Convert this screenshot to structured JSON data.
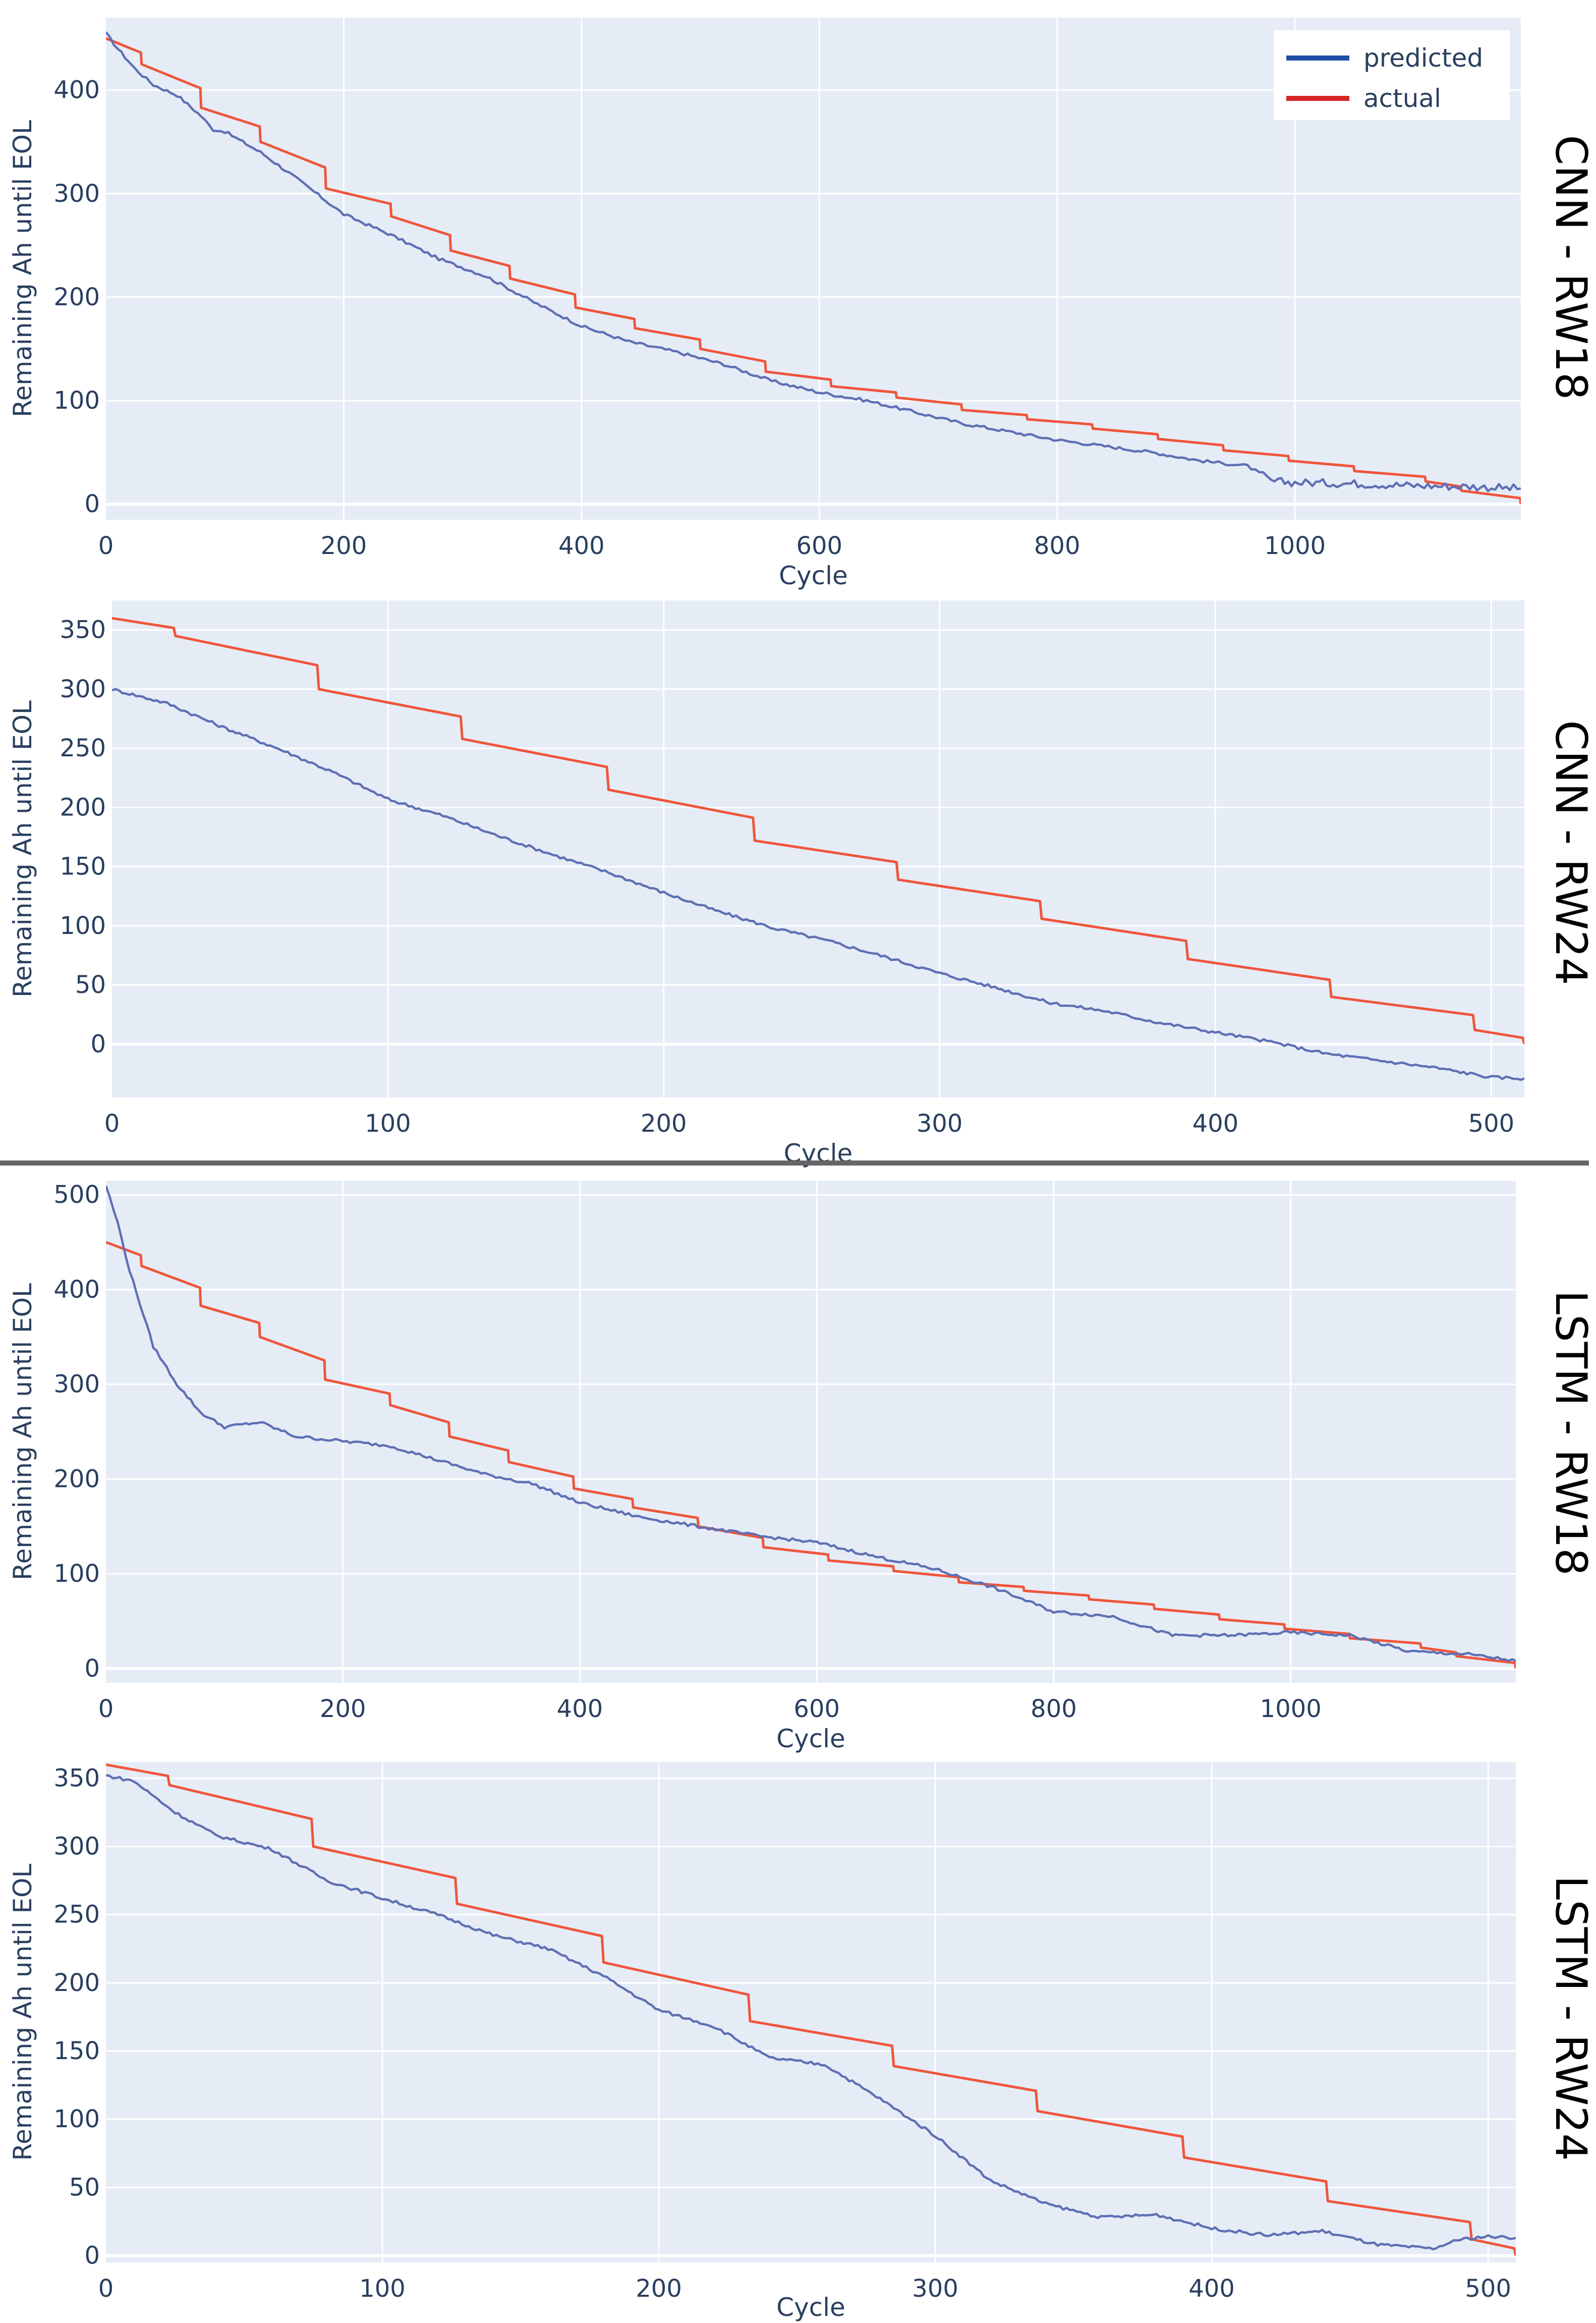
{
  "legend": {
    "predicted": "predicted",
    "actual": "actual"
  },
  "colors": {
    "predicted": "#5f6fb4",
    "actual": "#ef553b",
    "predicted_legend": "#1f4ea8",
    "actual_legend": "#d62728",
    "plot_bg": "#e5ecf6",
    "separator": "#666666"
  },
  "chart_data": [
    {
      "type": "line",
      "panel_label": "CNN - RW18",
      "xlabel": "Cycle",
      "ylabel": "Remaining Ah until EOL",
      "xlim": [
        0,
        1190
      ],
      "ylim": [
        -15,
        470
      ],
      "xticks": [
        0,
        200,
        400,
        600,
        800,
        1000
      ],
      "yticks": [
        0,
        100,
        200,
        300,
        400
      ],
      "legend": true,
      "noise_after": 970,
      "series": [
        {
          "name": "actual",
          "x": [
            0,
            30,
            80,
            130,
            185,
            240,
            290,
            340,
            395,
            445,
            500,
            555,
            610,
            665,
            720,
            775,
            830,
            885,
            940,
            995,
            1050,
            1110,
            1140,
            1190
          ],
          "values": [
            450,
            425,
            383,
            350,
            305,
            278,
            245,
            218,
            190,
            170,
            150,
            128,
            114,
            103,
            91,
            82,
            73,
            63,
            52,
            42,
            32,
            22,
            13,
            0
          ]
        },
        {
          "name": "predicted",
          "x": [
            0,
            10,
            25,
            40,
            60,
            80,
            90,
            100,
            130,
            160,
            200,
            240,
            280,
            320,
            360,
            400,
            440,
            480,
            520,
            560,
            600,
            640,
            680,
            720,
            760,
            800,
            840,
            880,
            920,
            960,
            970,
            980,
            1000,
            1050,
            1100,
            1150,
            1190
          ],
          "values": [
            455,
            440,
            420,
            405,
            395,
            375,
            362,
            360,
            340,
            315,
            280,
            260,
            237,
            220,
            195,
            172,
            157,
            147,
            135,
            119,
            108,
            100,
            89,
            78,
            70,
            62,
            56,
            50,
            42,
            37,
            30,
            22,
            21,
            20,
            18,
            17,
            15
          ]
        }
      ]
    },
    {
      "type": "line",
      "panel_label": "CNN - RW24",
      "xlabel": "Cycle",
      "ylabel": "Remaining Ah until EOL",
      "xlim": [
        0,
        512
      ],
      "ylim": [
        -45,
        375
      ],
      "xticks": [
        0,
        100,
        200,
        300,
        400,
        500
      ],
      "yticks": [
        0,
        50,
        100,
        150,
        200,
        250,
        300,
        350
      ],
      "legend": false,
      "series": [
        {
          "name": "actual",
          "x": [
            0,
            23,
            75,
            127,
            180,
            233,
            285,
            337,
            390,
            442,
            494,
            512
          ],
          "values": [
            360,
            345,
            300,
            258,
            215,
            172,
            139,
            106,
            72,
            40,
            12,
            0
          ]
        },
        {
          "name": "predicted",
          "x": [
            0,
            20,
            40,
            60,
            80,
            100,
            120,
            140,
            160,
            180,
            200,
            220,
            240,
            260,
            280,
            300,
            320,
            340,
            360,
            380,
            400,
            420,
            440,
            460,
            480,
            500,
            512
          ],
          "values": [
            300,
            288,
            268,
            250,
            230,
            207,
            193,
            176,
            160,
            145,
            128,
            112,
            98,
            87,
            74,
            60,
            48,
            35,
            28,
            18,
            10,
            2,
            -8,
            -14,
            -20,
            -28,
            -29
          ]
        }
      ]
    },
    {
      "type": "line",
      "panel_label": "LSTM - RW18",
      "xlabel": "Cycle",
      "ylabel": "Remaining Ah until EOL",
      "xlim": [
        0,
        1190
      ],
      "ylim": [
        -15,
        515
      ],
      "xticks": [
        0,
        200,
        400,
        600,
        800,
        1000
      ],
      "yticks": [
        0,
        100,
        200,
        300,
        400,
        500
      ],
      "legend": false,
      "series": [
        {
          "name": "actual",
          "x": [
            0,
            30,
            80,
            130,
            185,
            240,
            290,
            340,
            395,
            445,
            500,
            555,
            610,
            665,
            720,
            775,
            830,
            885,
            940,
            995,
            1050,
            1110,
            1140,
            1190
          ],
          "values": [
            450,
            425,
            383,
            350,
            305,
            278,
            245,
            218,
            190,
            170,
            150,
            128,
            114,
            103,
            91,
            82,
            73,
            63,
            52,
            42,
            32,
            22,
            13,
            0
          ]
        },
        {
          "name": "predicted",
          "x": [
            0,
            10,
            20,
            40,
            60,
            80,
            100,
            130,
            160,
            200,
            240,
            280,
            320,
            360,
            400,
            450,
            500,
            550,
            600,
            650,
            700,
            750,
            800,
            850,
            900,
            950,
            1000,
            1050,
            1100,
            1150,
            1190
          ],
          "values": [
            510,
            470,
            420,
            340,
            300,
            270,
            255,
            260,
            245,
            240,
            235,
            220,
            205,
            195,
            175,
            160,
            150,
            140,
            133,
            118,
            105,
            85,
            60,
            55,
            35,
            35,
            38,
            35,
            18,
            15,
            8
          ]
        }
      ]
    },
    {
      "type": "line",
      "panel_label": "LSTM - RW24",
      "xlabel": "Cycle",
      "ylabel": "Remaining Ah until EOL",
      "xlim": [
        0,
        510
      ],
      "ylim": [
        -5,
        362
      ],
      "xticks": [
        0,
        100,
        200,
        300,
        400,
        500
      ],
      "yticks": [
        0,
        50,
        100,
        150,
        200,
        250,
        300,
        350
      ],
      "legend": false,
      "series": [
        {
          "name": "actual",
          "x": [
            0,
            23,
            75,
            127,
            180,
            233,
            285,
            337,
            390,
            442,
            494,
            510
          ],
          "values": [
            360,
            345,
            300,
            258,
            215,
            172,
            139,
            106,
            72,
            40,
            12,
            0
          ]
        },
        {
          "name": "predicted",
          "x": [
            0,
            10,
            25,
            40,
            60,
            80,
            100,
            120,
            140,
            160,
            180,
            200,
            220,
            240,
            260,
            280,
            300,
            320,
            340,
            360,
            380,
            400,
            420,
            440,
            460,
            480,
            490,
            500,
            510
          ],
          "values": [
            352,
            348,
            325,
            308,
            298,
            275,
            262,
            250,
            235,
            225,
            205,
            180,
            168,
            145,
            140,
            115,
            88,
            55,
            38,
            28,
            30,
            20,
            15,
            18,
            8,
            5,
            12,
            14,
            13
          ]
        }
      ]
    }
  ]
}
